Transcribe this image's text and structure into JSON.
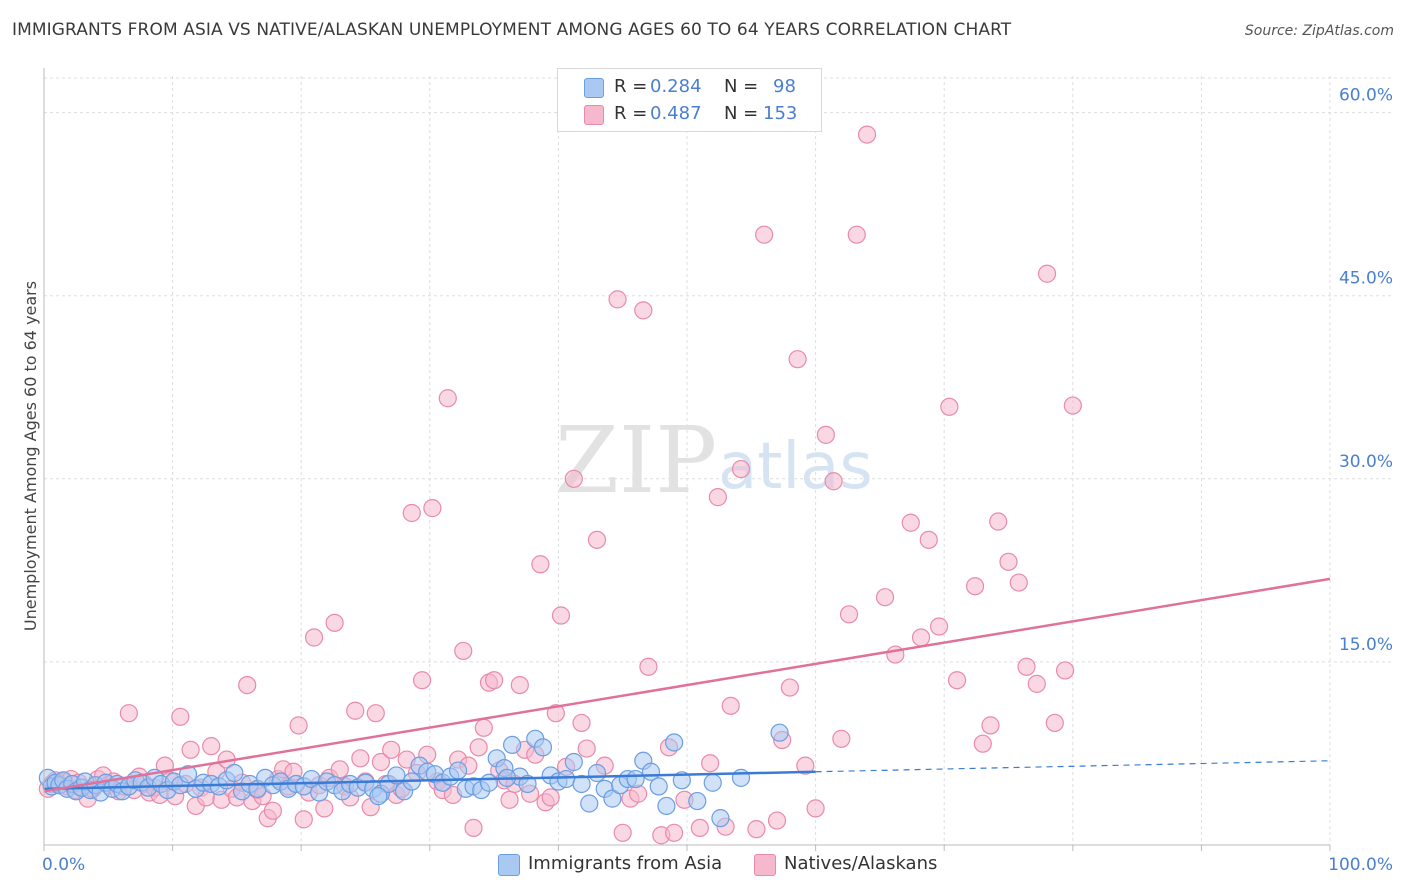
{
  "title": "IMMIGRANTS FROM ASIA VS NATIVE/ALASKAN UNEMPLOYMENT AMONG AGES 60 TO 64 YEARS CORRELATION CHART",
  "source": "Source: ZipAtlas.com",
  "watermark": {
    "zip": "ZIP",
    "atlas": "atlas"
  },
  "colors": {
    "blue_fill": "#a9c8f2",
    "blue_stroke": "#6b9ee2",
    "blue_line": "#3a7bd5",
    "pink_fill": "#f5b8cc",
    "pink_stroke": "#e98aa9",
    "pink_line": "#e0719a",
    "tick_text": "#4a7fd0",
    "grid": "#dddddd"
  },
  "stats": [
    {
      "r_label": "R =",
      "r_value": "0.284",
      "n_label": "N =",
      "n_value": "98",
      "color": "#a9c8f2",
      "border": "#6b9ee2"
    },
    {
      "r_label": "R =",
      "r_value": "0.487",
      "n_label": "N =",
      "n_value": "153",
      "color": "#f5b8cc",
      "border": "#e98aa9"
    }
  ],
  "chart_data": {
    "type": "scatter",
    "title": "IMMIGRANTS FROM ASIA VS NATIVE/ALASKAN UNEMPLOYMENT AMONG AGES 60 TO 64 YEARS CORRELATION CHART",
    "xlabel": "",
    "ylabel": "Unemployment Among Ages 60 to 64 years",
    "xlim": [
      0,
      100
    ],
    "ylim": [
      0,
      63
    ],
    "y_ticks": [
      15,
      30,
      45,
      60
    ],
    "y_tick_labels": [
      "15.0%",
      "30.0%",
      "45.0%",
      "60.0%"
    ],
    "x_tick_labels": [
      "0.0%",
      "100.0%"
    ],
    "grid": true,
    "legend_position": "bottom-center",
    "series": [
      {
        "name": "Immigrants from Asia",
        "color": "#a9c8f2",
        "trend": {
          "x0": 0,
          "y0": 4.6,
          "x1": 60,
          "y1": 6.0,
          "dashed_to_x": 100,
          "dashed_to_y": 6.9
        },
        "points": [
          [
            0.3,
            5.5
          ],
          [
            0.6,
            4.8
          ],
          [
            0.9,
            5.1
          ],
          [
            1.2,
            4.9
          ],
          [
            1.5,
            5.3
          ],
          [
            1.8,
            4.6
          ],
          [
            2.2,
            5.0
          ],
          [
            2.5,
            4.4
          ],
          [
            2.9,
            4.7
          ],
          [
            3.2,
            5.2
          ],
          [
            3.6,
            4.5
          ],
          [
            4.0,
            4.9
          ],
          [
            4.4,
            4.3
          ],
          [
            4.8,
            5.1
          ],
          [
            5.3,
            4.6
          ],
          [
            5.7,
            5.0
          ],
          [
            6.1,
            4.4
          ],
          [
            6.6,
            4.8
          ],
          [
            7.1,
            5.3
          ],
          [
            7.6,
            5.1
          ],
          [
            8.1,
            4.7
          ],
          [
            8.6,
            5.5
          ],
          [
            9.1,
            5.0
          ],
          [
            9.6,
            4.5
          ],
          [
            10.1,
            5.2
          ],
          [
            10.6,
            4.9
          ],
          [
            11.2,
            5.8
          ],
          [
            11.8,
            4.6
          ],
          [
            12.4,
            5.1
          ],
          [
            13.0,
            5.0
          ],
          [
            13.6,
            4.8
          ],
          [
            14.2,
            5.3
          ],
          [
            14.8,
            5.9
          ],
          [
            15.4,
            4.4
          ],
          [
            16.0,
            5.0
          ],
          [
            16.6,
            4.6
          ],
          [
            17.2,
            5.5
          ],
          [
            17.8,
            4.9
          ],
          [
            18.4,
            5.2
          ],
          [
            19.0,
            4.6
          ],
          [
            19.6,
            5.0
          ],
          [
            20.2,
            4.8
          ],
          [
            20.8,
            5.4
          ],
          [
            21.4,
            4.3
          ],
          [
            22.0,
            5.2
          ],
          [
            22.6,
            4.9
          ],
          [
            23.2,
            4.4
          ],
          [
            23.8,
            5.0
          ],
          [
            24.4,
            4.7
          ],
          [
            25.0,
            5.1
          ],
          [
            25.6,
            4.6
          ],
          [
            26.2,
            4.2
          ],
          [
            26.8,
            5.0
          ],
          [
            27.4,
            5.7
          ],
          [
            28.0,
            4.4
          ],
          [
            28.6,
            5.2
          ],
          [
            29.2,
            6.5
          ],
          [
            29.8,
            6.0
          ],
          [
            30.4,
            5.8
          ],
          [
            31.0,
            5.1
          ],
          [
            31.6,
            5.6
          ],
          [
            32.2,
            6.1
          ],
          [
            32.8,
            4.6
          ],
          [
            33.4,
            4.8
          ],
          [
            34.0,
            4.5
          ],
          [
            34.6,
            5.1
          ],
          [
            35.2,
            7.1
          ],
          [
            35.8,
            6.3
          ],
          [
            36.4,
            8.2
          ],
          [
            37.0,
            5.6
          ],
          [
            37.6,
            5.0
          ],
          [
            38.2,
            8.7
          ],
          [
            38.8,
            8.0
          ],
          [
            39.4,
            5.7
          ],
          [
            40.0,
            5.2
          ],
          [
            40.6,
            5.4
          ],
          [
            41.2,
            6.8
          ],
          [
            41.8,
            5.0
          ],
          [
            42.4,
            3.4
          ],
          [
            43.0,
            5.9
          ],
          [
            43.6,
            4.6
          ],
          [
            44.2,
            3.8
          ],
          [
            44.8,
            4.9
          ],
          [
            45.4,
            5.4
          ],
          [
            46.0,
            5.4
          ],
          [
            46.6,
            6.9
          ],
          [
            47.2,
            6.0
          ],
          [
            47.8,
            4.8
          ],
          [
            48.4,
            3.2
          ],
          [
            49.0,
            8.4
          ],
          [
            49.6,
            5.3
          ],
          [
            50.8,
            3.6
          ],
          [
            52.0,
            5.1
          ],
          [
            52.6,
            2.2
          ],
          [
            54.2,
            5.5
          ],
          [
            57.2,
            9.2
          ],
          [
            26.0,
            4.0
          ],
          [
            36.0,
            5.5
          ]
        ]
      },
      {
        "name": "Natives/Alaskans",
        "color": "#f5b8cc",
        "trend": {
          "x0": 0,
          "y0": 4.4,
          "x1": 100,
          "y1": 21.8
        },
        "points": [
          [
            0.3,
            4.6
          ],
          [
            0.6,
            5.0
          ],
          [
            0.9,
            5.3
          ],
          [
            1.2,
            4.9
          ],
          [
            1.5,
            5.2
          ],
          [
            1.8,
            4.8
          ],
          [
            2.1,
            5.4
          ],
          [
            2.4,
            4.5
          ],
          [
            2.7,
            5.1
          ],
          [
            3.0,
            4.7
          ],
          [
            3.4,
            3.8
          ],
          [
            3.8,
            4.6
          ],
          [
            4.2,
            5.4
          ],
          [
            4.6,
            5.7
          ],
          [
            5.0,
            4.9
          ],
          [
            5.4,
            5.2
          ],
          [
            5.8,
            4.4
          ],
          [
            6.2,
            4.8
          ],
          [
            6.6,
            10.8
          ],
          [
            7.0,
            4.5
          ],
          [
            7.4,
            5.6
          ],
          [
            7.8,
            5.0
          ],
          [
            8.2,
            4.3
          ],
          [
            8.6,
            4.7
          ],
          [
            9.0,
            4.1
          ],
          [
            9.4,
            6.5
          ],
          [
            9.8,
            5.3
          ],
          [
            10.2,
            4.0
          ],
          [
            10.6,
            10.5
          ],
          [
            11.0,
            5.0
          ],
          [
            11.4,
            7.8
          ],
          [
            11.8,
            3.2
          ],
          [
            12.2,
            4.7
          ],
          [
            12.6,
            3.9
          ],
          [
            13.0,
            8.1
          ],
          [
            13.4,
            6.0
          ],
          [
            13.8,
            3.7
          ],
          [
            14.2,
            7.0
          ],
          [
            14.6,
            4.6
          ],
          [
            15.0,
            3.9
          ],
          [
            15.4,
            5.1
          ],
          [
            15.8,
            13.1
          ],
          [
            16.2,
            3.6
          ],
          [
            16.6,
            4.5
          ],
          [
            17.0,
            4.0
          ],
          [
            17.4,
            2.2
          ],
          [
            17.8,
            2.8
          ],
          [
            18.2,
            5.4
          ],
          [
            18.6,
            6.2
          ],
          [
            19.0,
            4.8
          ],
          [
            19.4,
            6.0
          ],
          [
            19.8,
            9.8
          ],
          [
            20.2,
            2.1
          ],
          [
            20.6,
            4.3
          ],
          [
            21.0,
            17.0
          ],
          [
            21.4,
            4.9
          ],
          [
            21.8,
            3.0
          ],
          [
            22.2,
            5.5
          ],
          [
            22.6,
            18.2
          ],
          [
            23.0,
            6.2
          ],
          [
            23.4,
            4.8
          ],
          [
            23.8,
            3.9
          ],
          [
            24.2,
            11.0
          ],
          [
            24.6,
            7.1
          ],
          [
            25.0,
            5.2
          ],
          [
            25.4,
            3.1
          ],
          [
            25.8,
            10.8
          ],
          [
            26.2,
            6.8
          ],
          [
            26.6,
            5.0
          ],
          [
            27.0,
            7.8
          ],
          [
            27.4,
            4.1
          ],
          [
            27.8,
            4.6
          ],
          [
            28.2,
            7.0
          ],
          [
            28.6,
            27.2
          ],
          [
            29.0,
            5.9
          ],
          [
            29.4,
            13.5
          ],
          [
            29.8,
            7.4
          ],
          [
            30.2,
            27.6
          ],
          [
            30.6,
            5.2
          ],
          [
            31.0,
            4.5
          ],
          [
            31.4,
            36.6
          ],
          [
            31.8,
            4.1
          ],
          [
            32.2,
            7.0
          ],
          [
            32.6,
            15.9
          ],
          [
            33.0,
            6.5
          ],
          [
            33.4,
            1.4
          ],
          [
            33.8,
            8.0
          ],
          [
            34.2,
            9.6
          ],
          [
            34.6,
            13.3
          ],
          [
            35.0,
            13.5
          ],
          [
            35.4,
            6.1
          ],
          [
            35.8,
            5.3
          ],
          [
            36.2,
            3.7
          ],
          [
            36.6,
            5.0
          ],
          [
            37.0,
            13.1
          ],
          [
            37.4,
            7.8
          ],
          [
            37.8,
            4.2
          ],
          [
            38.2,
            7.4
          ],
          [
            38.6,
            23.0
          ],
          [
            39.0,
            3.5
          ],
          [
            39.4,
            3.9
          ],
          [
            39.8,
            10.8
          ],
          [
            40.2,
            18.8
          ],
          [
            40.6,
            6.4
          ],
          [
            41.2,
            30.0
          ],
          [
            41.8,
            10.0
          ],
          [
            42.2,
            7.9
          ],
          [
            43.0,
            25.0
          ],
          [
            43.6,
            6.5
          ],
          [
            44.6,
            44.7
          ],
          [
            45.0,
            1.0
          ],
          [
            45.6,
            3.8
          ],
          [
            46.2,
            4.2
          ],
          [
            46.6,
            43.8
          ],
          [
            47.0,
            14.6
          ],
          [
            48.0,
            0.8
          ],
          [
            48.6,
            8.0
          ],
          [
            49.0,
            1.0
          ],
          [
            49.8,
            3.7
          ],
          [
            51.0,
            1.4
          ],
          [
            51.8,
            6.7
          ],
          [
            52.4,
            28.5
          ],
          [
            53.0,
            1.5
          ],
          [
            53.4,
            11.4
          ],
          [
            54.2,
            30.8
          ],
          [
            55.4,
            1.3
          ],
          [
            56.0,
            50.0
          ],
          [
            57.0,
            2.0
          ],
          [
            57.4,
            8.6
          ],
          [
            58.0,
            12.9
          ],
          [
            58.6,
            39.8
          ],
          [
            59.2,
            6.5
          ],
          [
            60.0,
            3.0
          ],
          [
            60.8,
            33.6
          ],
          [
            61.4,
            29.8
          ],
          [
            62.0,
            8.7
          ],
          [
            62.6,
            18.9
          ],
          [
            63.2,
            50.0
          ],
          [
            64.0,
            58.2
          ],
          [
            65.4,
            20.3
          ],
          [
            66.2,
            15.6
          ],
          [
            67.4,
            26.4
          ],
          [
            68.2,
            17.0
          ],
          [
            68.8,
            25.0
          ],
          [
            69.6,
            17.9
          ],
          [
            70.4,
            35.9
          ],
          [
            71.0,
            13.5
          ],
          [
            72.4,
            21.2
          ],
          [
            73.0,
            8.3
          ],
          [
            73.6,
            9.8
          ],
          [
            74.2,
            26.5
          ],
          [
            75.0,
            23.2
          ],
          [
            75.8,
            21.5
          ],
          [
            76.4,
            14.6
          ],
          [
            77.2,
            13.2
          ],
          [
            78.0,
            46.8
          ],
          [
            78.6,
            10.0
          ],
          [
            79.4,
            14.3
          ],
          [
            80.0,
            36.0
          ]
        ]
      }
    ]
  },
  "legend": [
    {
      "label": "Immigrants from Asia",
      "color": "#a9c8f2",
      "border": "#6b9ee2"
    },
    {
      "label": "Natives/Alaskans",
      "color": "#f5b8cc",
      "border": "#e98aa9"
    }
  ]
}
